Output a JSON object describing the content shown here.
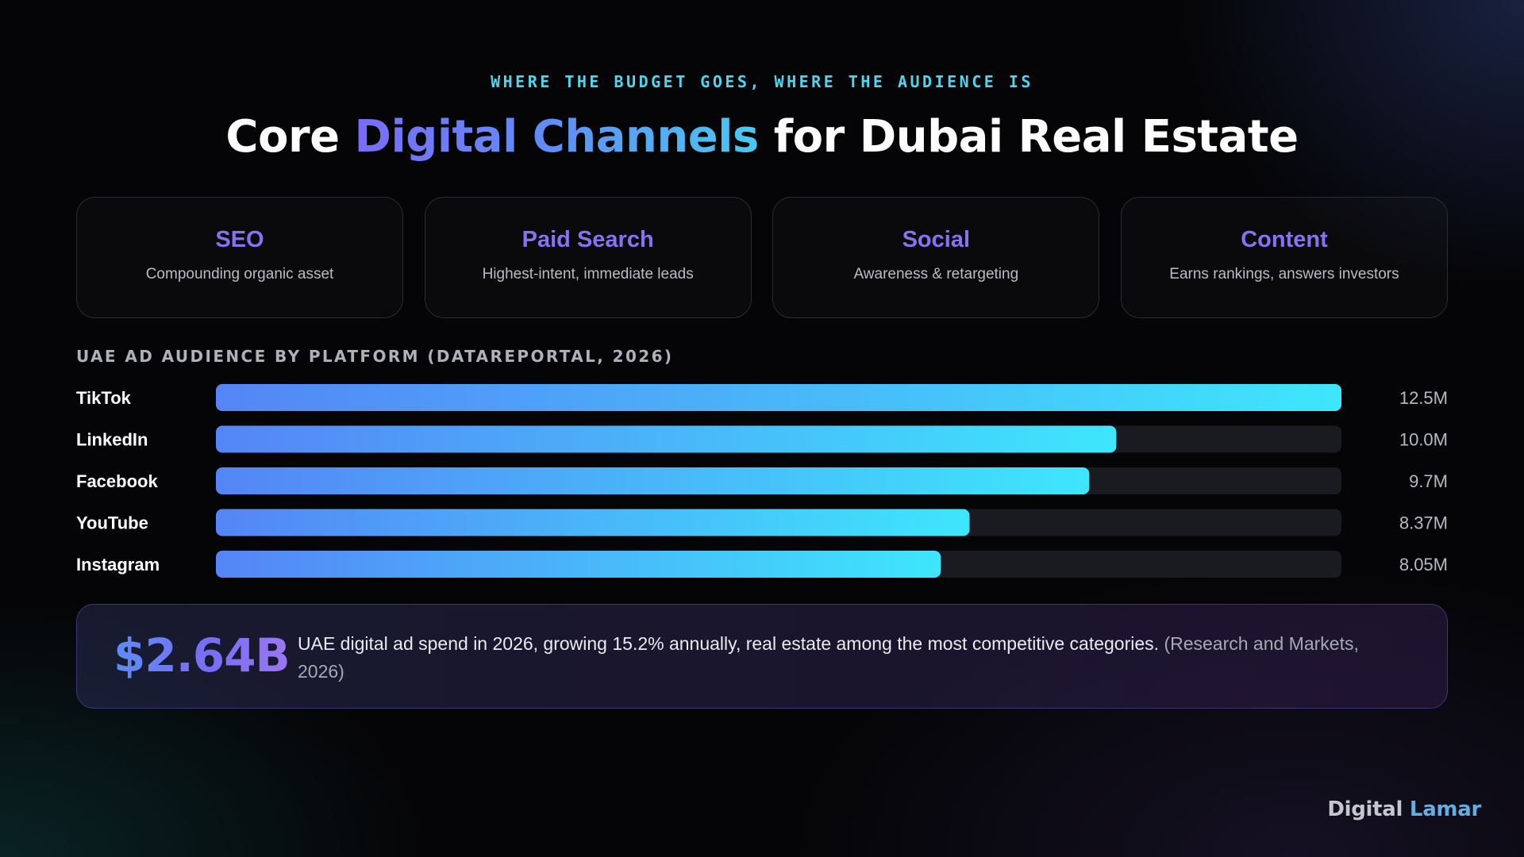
{
  "header": {
    "eyebrow": "WHERE THE BUDGET GOES, WHERE THE AUDIENCE IS",
    "title_prefix": "Core ",
    "title_highlight": "Digital Channels",
    "title_suffix": " for Dubai Real Estate"
  },
  "cards": [
    {
      "title": "SEO",
      "subtitle": "Compounding organic asset"
    },
    {
      "title": "Paid Search",
      "subtitle": "Highest-intent, immediate leads"
    },
    {
      "title": "Social",
      "subtitle": "Awareness & retargeting"
    },
    {
      "title": "Content",
      "subtitle": "Earns rankings, answers investors"
    }
  ],
  "chart_data": {
    "type": "bar",
    "orientation": "horizontal",
    "title": "UAE AD AUDIENCE BY PLATFORM (DATAREPORTAL, 2026)",
    "categories": [
      "TikTok",
      "LinkedIn",
      "Facebook",
      "YouTube",
      "Instagram"
    ],
    "values": [
      12.5,
      10.0,
      9.7,
      8.37,
      8.05
    ],
    "value_labels": [
      "12.5M",
      "10.0M",
      "9.7M",
      "8.37M",
      "8.05M"
    ],
    "unit": "M",
    "xlim": [
      0,
      12.5
    ],
    "grid": false,
    "legend": "none"
  },
  "callout": {
    "value": "$2.64B",
    "text": "UAE digital ad spend in 2026, growing 15.2% annually, real estate among the most competitive categories.",
    "source": "(Research and Markets, 2026)"
  },
  "brand": {
    "part1": "Digital",
    "part2": "Lamar"
  },
  "colors": {
    "accent_purple": "#8872f2",
    "accent_cyan": "#4fd6ee",
    "bar_start": "#5585f6",
    "bar_end": "#3ee6fc",
    "track": "#1a1b20"
  }
}
